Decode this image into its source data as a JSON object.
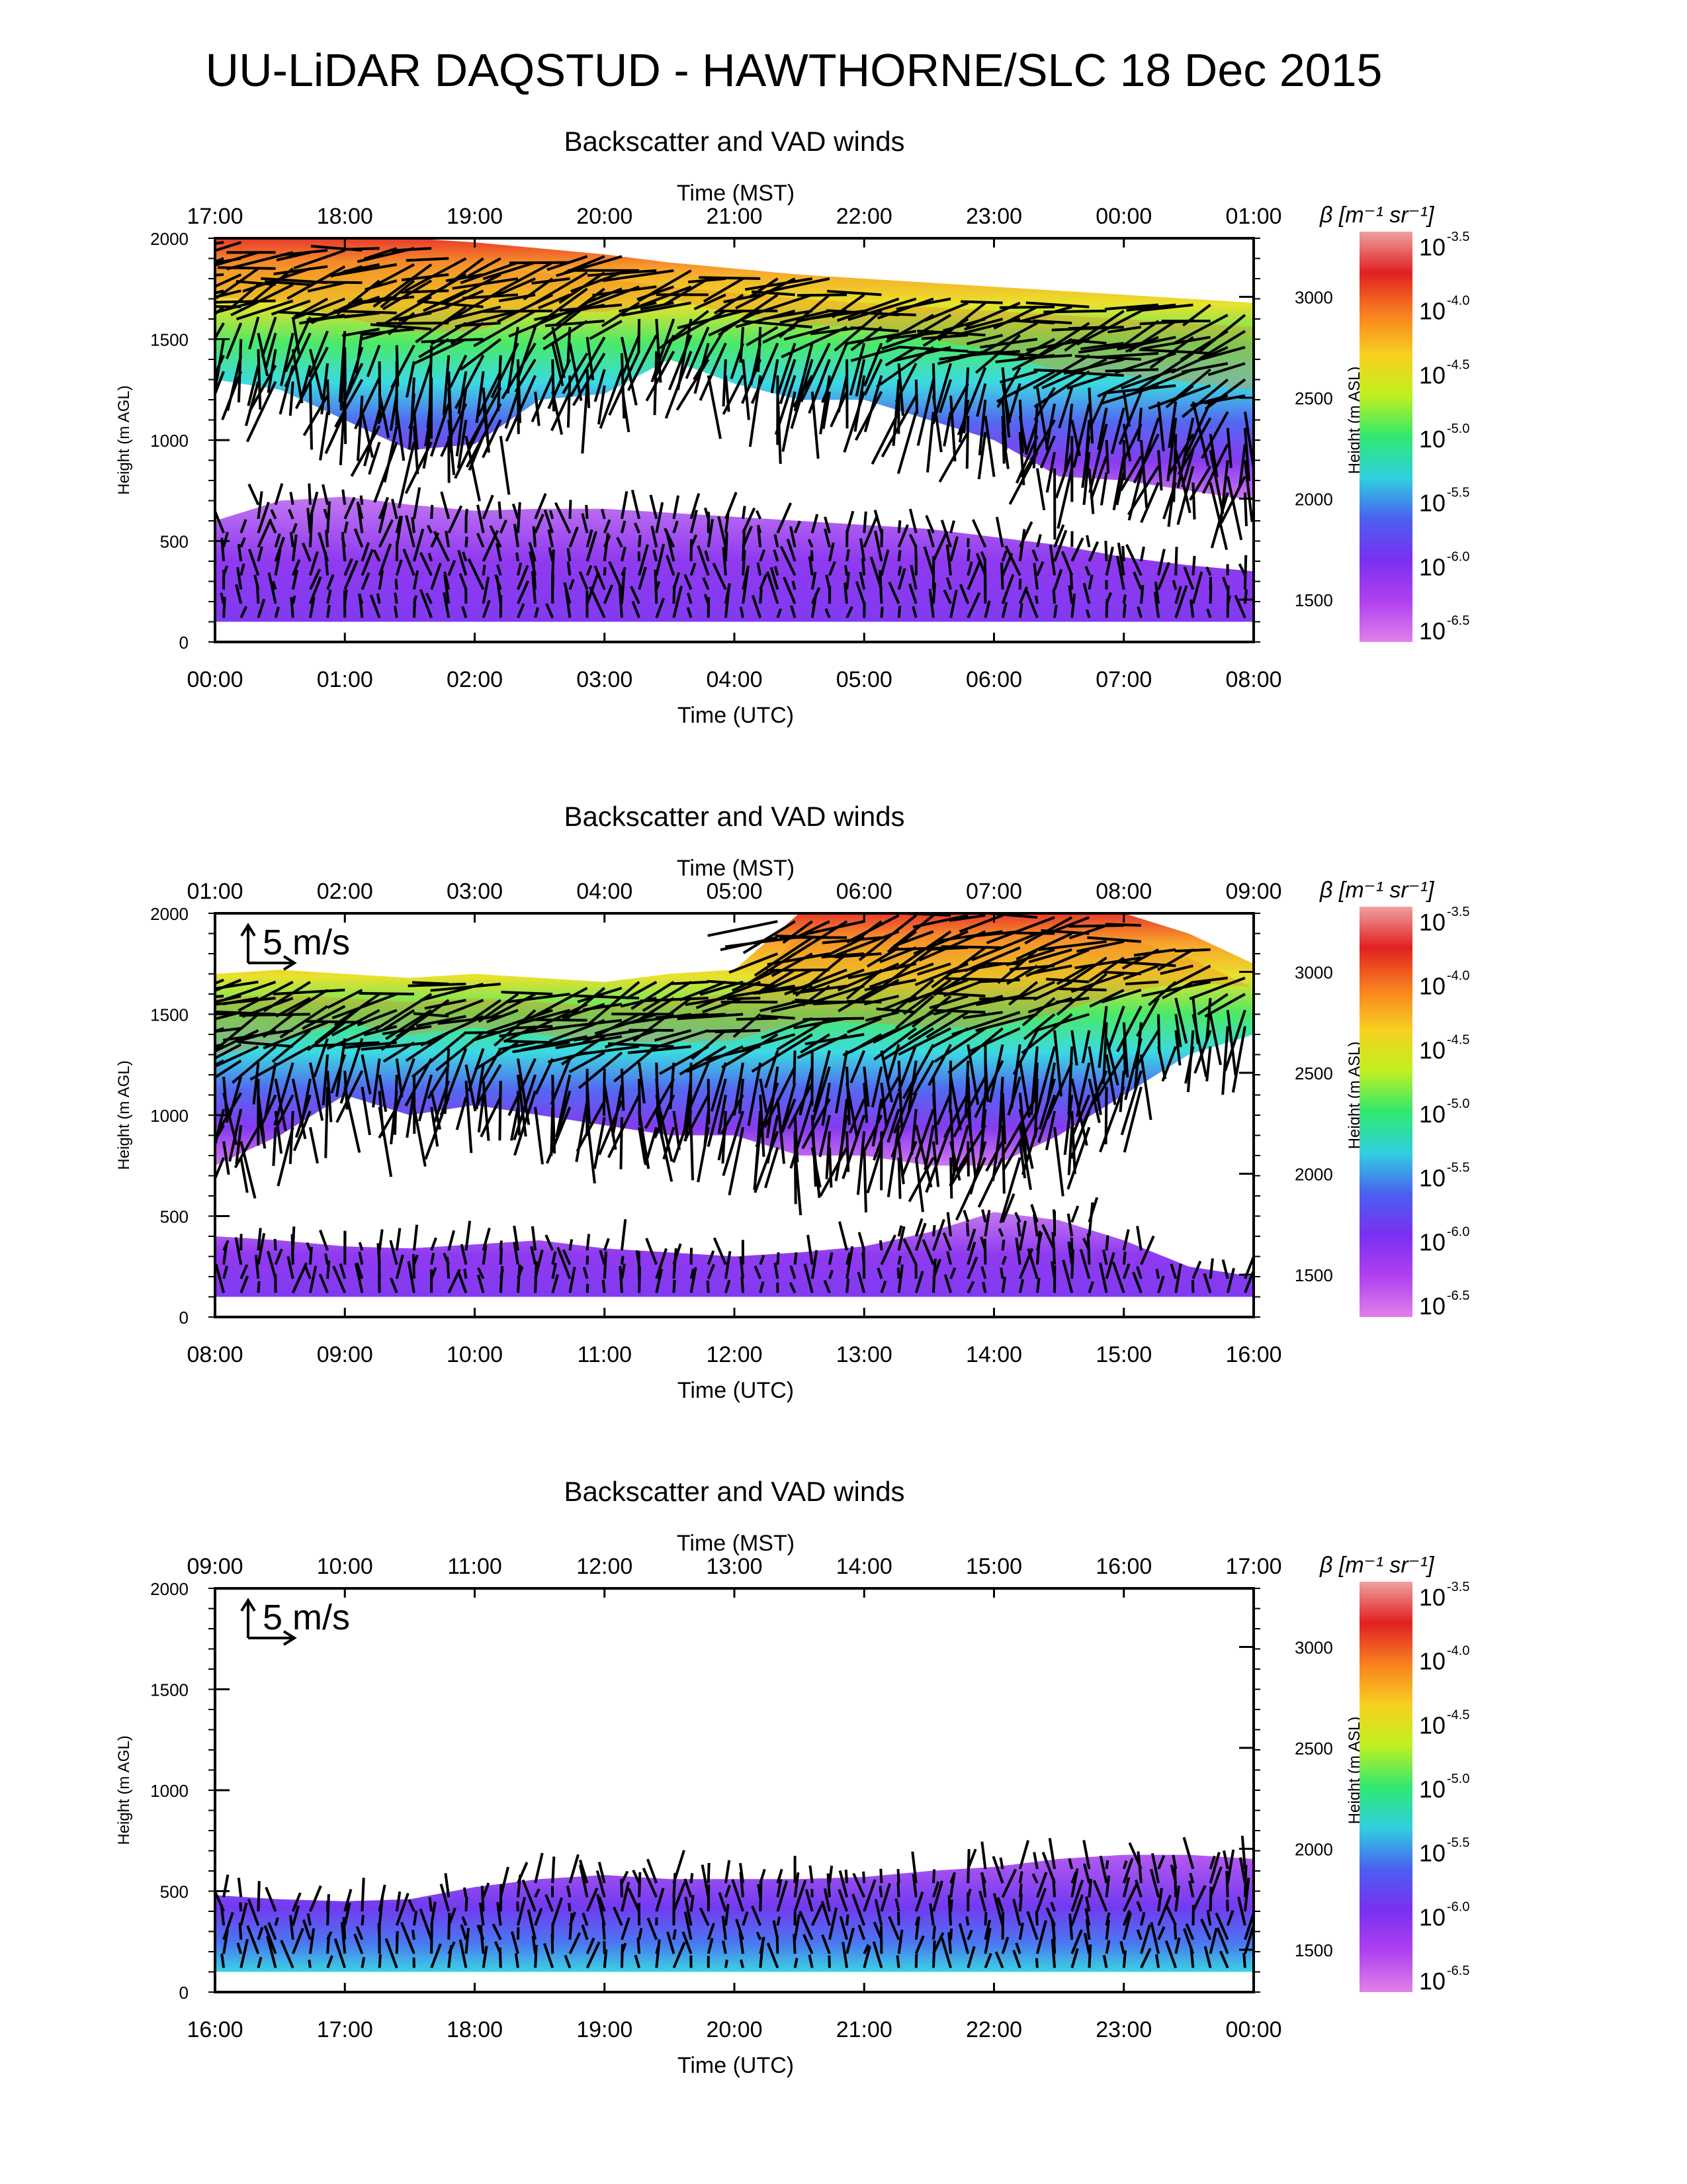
{
  "page": {
    "title": "UU-LiDAR DAQSTUD - HAWTHORNE/SLC 18 Dec 2015"
  },
  "colors": {
    "scale": [
      "#e080e8",
      "#b040f0",
      "#7a30f0",
      "#4a60f0",
      "#30d0e0",
      "#30e870",
      "#c0f020",
      "#f8d020",
      "#f88020",
      "#e02020",
      "#f0a0a0"
    ],
    "arrows": "#000000",
    "axes": "#000000"
  },
  "chart_data": [
    {
      "type": "heatmap",
      "title": "Backscatter and VAD winds",
      "xlabel": "Time (UTC)",
      "x2label": "Time (MST)",
      "ylabel": "Height (m AGL)",
      "y2label": "Height (m ASL)",
      "x_ticks": [
        "00:00",
        "01:00",
        "02:00",
        "03:00",
        "04:00",
        "05:00",
        "06:00",
        "07:00",
        "08:00"
      ],
      "x2_ticks": [
        "17:00",
        "18:00",
        "19:00",
        "20:00",
        "21:00",
        "22:00",
        "23:00",
        "00:00",
        "01:00"
      ],
      "y_ticks": [
        "0",
        "500",
        "1000",
        "1500",
        "2000"
      ],
      "y2_ticks": [
        "1500",
        "2000",
        "2500",
        "3000"
      ],
      "ylim": [
        0,
        2000
      ],
      "colorbar": {
        "label": "β [m⁻¹ sr⁻¹]",
        "ticks": [
          "-3.5",
          "-4.0",
          "-4.5",
          "-5.0",
          "-5.5",
          "-6.0",
          "-6.5"
        ]
      },
      "wind_scale_label": "",
      "upper_layer": {
        "top": [
          2000,
          2000,
          2000,
          2000,
          1980,
          1950,
          1920,
          1880,
          1850,
          1820,
          1800,
          1780,
          1760,
          1740,
          1720,
          1700,
          1680
        ],
        "bottom": [
          1300,
          1250,
          1100,
          950,
          980,
          1200,
          1230,
          1400,
          1280,
          1200,
          1200,
          1100,
          1000,
          820,
          800,
          750,
          700
        ]
      },
      "lower_layer": {
        "top": [
          600,
          700,
          720,
          680,
          650,
          660,
          660,
          640,
          620,
          600,
          580,
          560,
          520,
          480,
          420,
          380,
          350
        ]
      }
    },
    {
      "type": "heatmap",
      "title": "Backscatter and VAD winds",
      "xlabel": "Time (UTC)",
      "x2label": "Time (MST)",
      "ylabel": "Height (m AGL)",
      "y2label": "Height (m ASL)",
      "x_ticks": [
        "08:00",
        "09:00",
        "10:00",
        "11:00",
        "12:00",
        "13:00",
        "14:00",
        "15:00",
        "16:00"
      ],
      "x2_ticks": [
        "01:00",
        "02:00",
        "03:00",
        "04:00",
        "05:00",
        "06:00",
        "07:00",
        "08:00",
        "09:00"
      ],
      "y_ticks": [
        "0",
        "500",
        "1000",
        "1500",
        "2000"
      ],
      "y2_ticks": [
        "1500",
        "2000",
        "2500",
        "3000"
      ],
      "ylim": [
        0,
        2000
      ],
      "colorbar": {
        "label": "β [m⁻¹ sr⁻¹]",
        "ticks": [
          "-3.5",
          "-4.0",
          "-4.5",
          "-5.0",
          "-5.5",
          "-6.0",
          "-6.5"
        ]
      },
      "wind_scale_label": "5 m/s",
      "upper_layer": {
        "top": [
          1700,
          1720,
          1700,
          1680,
          1700,
          1680,
          1660,
          1700,
          1720,
          2000,
          2000,
          2000,
          2000,
          2000,
          2000,
          1900,
          1750
        ],
        "bottom": [
          750,
          900,
          1100,
          1000,
          1050,
          1000,
          950,
          900,
          900,
          800,
          800,
          750,
          750,
          900,
          1100,
          1300,
          1400
        ]
      },
      "lower_layer": {
        "top": [
          400,
          380,
          350,
          340,
          360,
          380,
          340,
          320,
          300,
          320,
          350,
          420,
          520,
          480,
          380,
          250,
          200
        ]
      }
    },
    {
      "type": "heatmap",
      "title": "Backscatter and VAD winds",
      "xlabel": "Time (UTC)",
      "x2label": "Time (MST)",
      "ylabel": "Height (m AGL)",
      "y2label": "Height (m ASL)",
      "x_ticks": [
        "16:00",
        "17:00",
        "18:00",
        "19:00",
        "20:00",
        "21:00",
        "22:00",
        "23:00",
        "00:00"
      ],
      "x2_ticks": [
        "09:00",
        "10:00",
        "11:00",
        "12:00",
        "13:00",
        "14:00",
        "15:00",
        "16:00",
        "17:00"
      ],
      "y_ticks": [
        "0",
        "500",
        "1000",
        "1500",
        "2000"
      ],
      "y2_ticks": [
        "1500",
        "2000",
        "2500",
        "3000"
      ],
      "ylim": [
        0,
        2000
      ],
      "colorbar": {
        "label": "β [m⁻¹ sr⁻¹]",
        "ticks": [
          "-3.5",
          "-4.0",
          "-4.5",
          "-5.0",
          "-5.5",
          "-6.0",
          "-6.5"
        ]
      },
      "wind_scale_label": "5 m/s",
      "upper_layer": null,
      "lower_layer": {
        "top": [
          480,
          460,
          450,
          460,
          520,
          560,
          580,
          560,
          560,
          560,
          570,
          600,
          620,
          660,
          680,
          680,
          660
        ]
      }
    }
  ]
}
